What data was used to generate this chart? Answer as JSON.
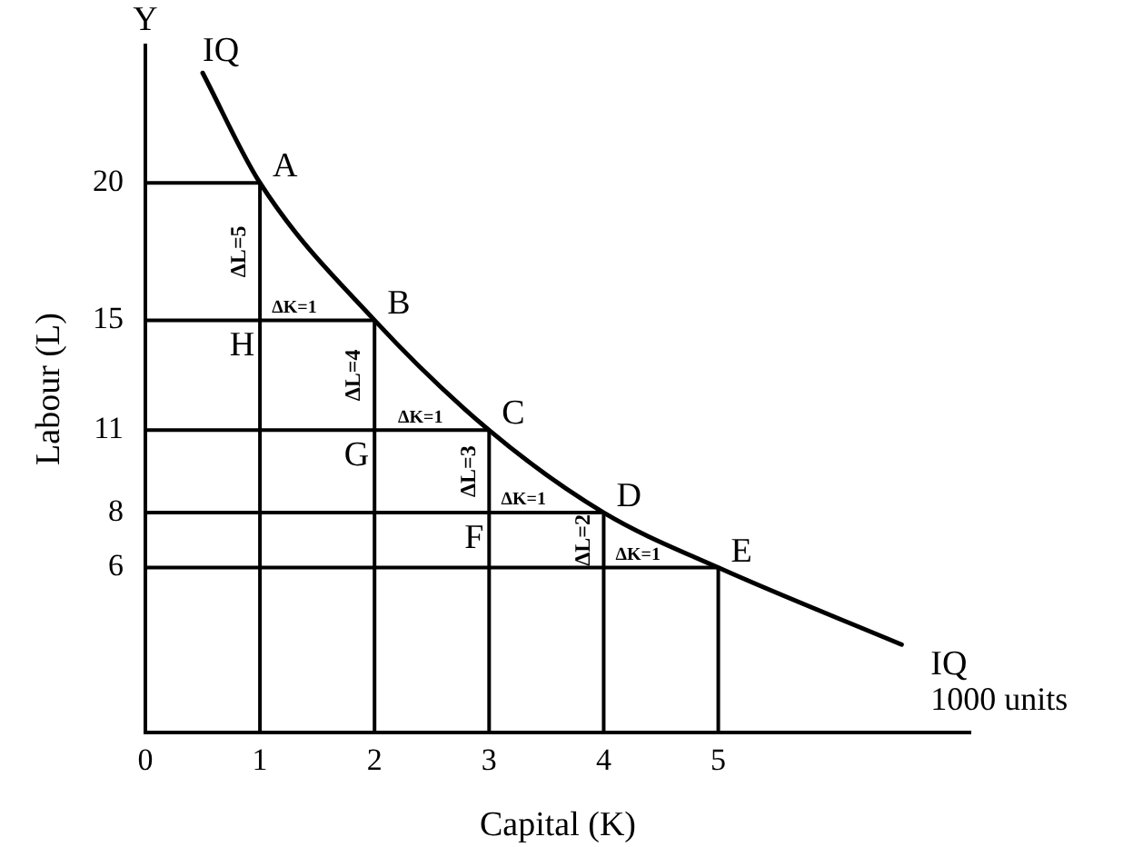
{
  "chart_data": {
    "type": "line",
    "xlabel": "Capital (K)",
    "ylabel": "Labour (L)",
    "xlim": [
      0,
      7.2
    ],
    "ylim": [
      0,
      25
    ],
    "xticks": [
      0,
      1,
      2,
      3,
      4,
      5
    ],
    "yticks": [
      6,
      8,
      11,
      15,
      20
    ],
    "series": [
      {
        "name": "IQ",
        "color": "#000000",
        "x": [
          0.5,
          1,
          2,
          3,
          4,
          5,
          6.6
        ],
        "values": [
          24,
          20,
          15,
          11,
          8,
          6,
          3.2
        ]
      },
      {
        "color": "#000000",
        "x": [
          0,
          1,
          1
        ],
        "values": [
          20,
          20,
          0
        ]
      },
      {
        "color": "#000000",
        "x": [
          0,
          2,
          2
        ],
        "values": [
          15,
          15,
          0
        ]
      },
      {
        "color": "#000000",
        "x": [
          0,
          3,
          3
        ],
        "values": [
          11,
          11,
          0
        ]
      },
      {
        "color": "#000000",
        "x": [
          0,
          4,
          4
        ],
        "values": [
          8,
          8,
          0
        ]
      },
      {
        "color": "#000000",
        "x": [
          0,
          5,
          5
        ],
        "values": [
          6,
          6,
          0
        ]
      }
    ],
    "annotations": [
      "Y",
      {
        "text": "A",
        "x": 1,
        "y": 20
      },
      {
        "text": "B",
        "x": 2,
        "y": 15
      },
      {
        "text": "C",
        "x": 3,
        "y": 11
      },
      {
        "text": "D",
        "x": 4,
        "y": 8
      },
      {
        "text": "E",
        "x": 5,
        "y": 6
      },
      {
        "text": "H",
        "x": 1,
        "y": 15
      },
      {
        "text": "G",
        "x": 2,
        "y": 11
      },
      {
        "text": "F",
        "x": 3,
        "y": 8
      },
      {
        "text": "ΔL=5",
        "x": 1,
        "y": 17.5
      },
      {
        "text": "ΔL=4",
        "x": 2,
        "y": 13
      },
      {
        "text": "ΔL=3",
        "x": 3,
        "y": 9.5
      },
      {
        "text": "ΔL=2",
        "x": 4,
        "y": 7
      },
      {
        "text": "ΔK=1",
        "x": 1.3,
        "y": 15
      },
      {
        "text": "ΔK=1",
        "x": 2.4,
        "y": 11
      },
      {
        "text": "ΔK=1",
        "x": 3.3,
        "y": 8
      },
      {
        "text": "ΔK=1",
        "x": 4.3,
        "y": 6
      },
      "1000 units"
    ]
  }
}
